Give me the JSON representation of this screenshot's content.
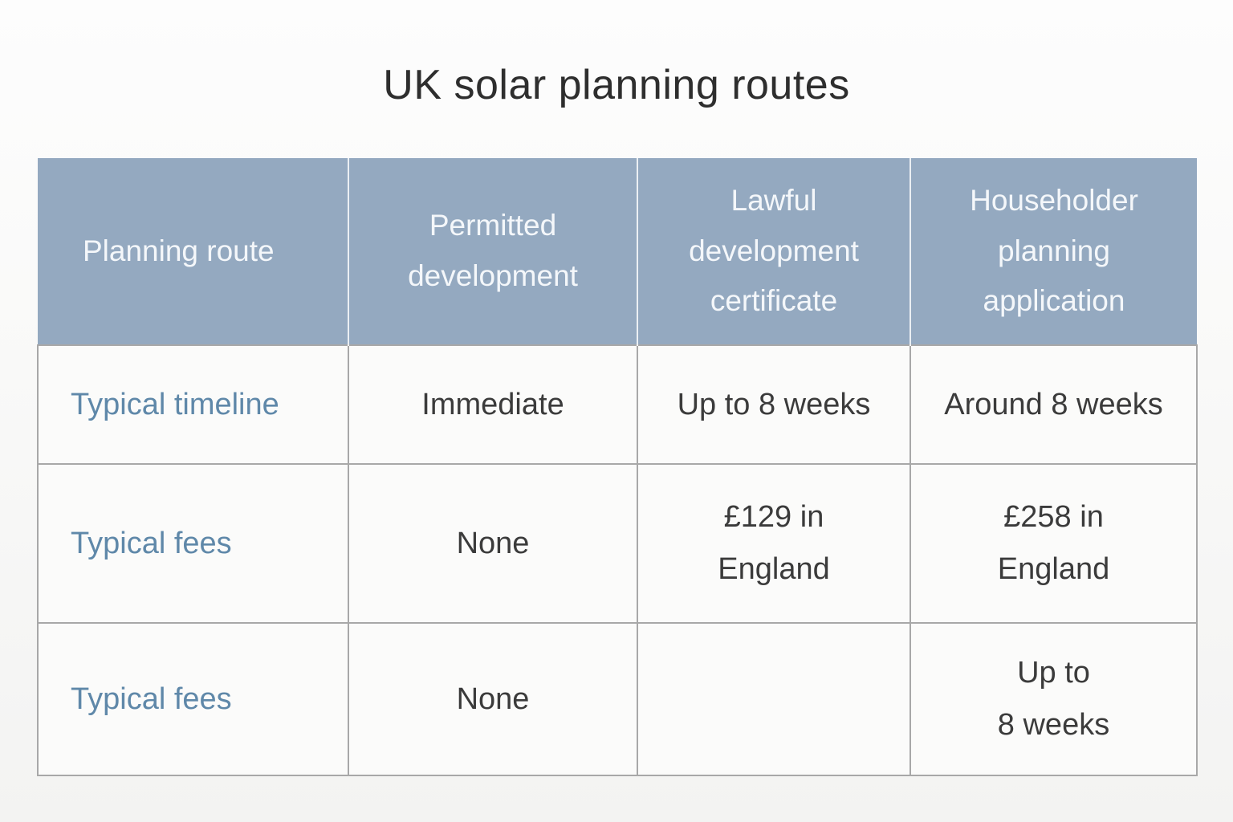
{
  "title": "UK solar planning routes",
  "colors": {
    "header_bg": "#94a9c0",
    "header_text": "#f4f7fa",
    "label_text": "#5f88a9",
    "body_text": "#3b3b3b",
    "grid_line": "#a8a8a8",
    "cell_bg": "#fbfbfa",
    "title_text": "#2e2e2e"
  },
  "table": {
    "header": {
      "col0": "Planning route",
      "col1": "Permitted\ndevelopment",
      "col2": "Lawful\ndevelopment\ncertificate",
      "col3": "Householder\nplanning\napplication"
    },
    "rows": [
      {
        "label": "Typical timeline",
        "cells": [
          "Immediate",
          "Up to 8 weeks",
          "Around 8 weeks"
        ]
      },
      {
        "label": "Typical fees",
        "cells": [
          "None",
          "£129 in\nEngland",
          "£258 in\nEngland"
        ]
      },
      {
        "label": "Typical fees",
        "cells": [
          "None",
          "",
          "Up to\n8 weeks"
        ]
      }
    ]
  },
  "chart_data": {
    "type": "table",
    "title": "UK solar planning routes",
    "columns": [
      "Planning route",
      "Permitted development",
      "Lawful development certificate",
      "Householder planning application"
    ],
    "rows": [
      [
        "Typical timeline",
        "Immediate",
        "Up to 8 weeks",
        "Around 8 weeks"
      ],
      [
        "Typical fees",
        "None",
        "£129 in England",
        "£258 in England"
      ],
      [
        "Typical fees",
        "None",
        "",
        "Up to 8 weeks"
      ]
    ]
  }
}
